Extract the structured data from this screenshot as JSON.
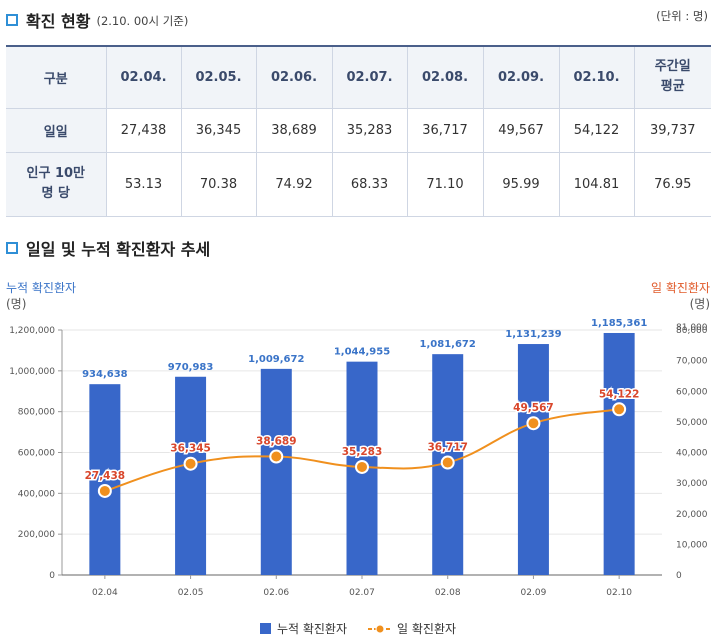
{
  "status": {
    "title": "확진 현황",
    "note": "(2.10. 00시 기준)",
    "unit": "(단위 : 명)",
    "headers": [
      "구분",
      "02.04.",
      "02.05.",
      "02.06.",
      "02.07.",
      "02.08.",
      "02.09.",
      "02.10.",
      "주간일\n평균"
    ],
    "rows": [
      {
        "label": "일일",
        "values": [
          "27,438",
          "36,345",
          "38,689",
          "35,283",
          "36,717",
          "49,567",
          "54,122",
          "39,737"
        ]
      },
      {
        "label": "인구 10만\n명 당",
        "values": [
          "53.13",
          "70.38",
          "74.92",
          "68.33",
          "71.10",
          "95.99",
          "104.81",
          "76.95"
        ]
      }
    ]
  },
  "trend": {
    "title": "일일 및 누적 확진환자 추세"
  },
  "chart_data": {
    "type": "bar+line",
    "categories": [
      "02.04",
      "02.05",
      "02.06",
      "02.07",
      "02.08",
      "02.09",
      "02.10"
    ],
    "series": [
      {
        "name": "누적 확진환자",
        "type": "bar",
        "axis": "left",
        "color": "#3867c9",
        "values": [
          934638,
          970983,
          1009672,
          1044955,
          1081672,
          1131239,
          1185361
        ],
        "labels": [
          "934,638",
          "970,983",
          "1,009,672",
          "1,044,955",
          "1,081,672",
          "1,131,239",
          "1,185,361"
        ]
      },
      {
        "name": "일 확진환자",
        "type": "line",
        "axis": "right",
        "color": "#f0901e",
        "values": [
          27438,
          36345,
          38689,
          35283,
          36717,
          49567,
          54122
        ],
        "labels": [
          "27,438",
          "36,345",
          "38,689",
          "35,283",
          "36,717",
          "49,567",
          "54,122"
        ]
      }
    ],
    "left_axis": {
      "label": "누적 확진환자",
      "unit": "(명)",
      "ylim": [
        0,
        1200000
      ],
      "ticks": [
        "0",
        "200,000",
        "400,000",
        "600,000",
        "800,000",
        "1,000,000",
        "1,200,000"
      ]
    },
    "right_axis": {
      "label": "일 확진환자",
      "unit": "(명)",
      "ylim": [
        0,
        80000
      ],
      "ticks": [
        "0",
        "10,000",
        "20,000",
        "30,000",
        "40,000",
        "50,000",
        "60,000",
        "70,000",
        "80,000",
        "81,000"
      ]
    },
    "legend": [
      "누적 확진환자",
      "일 확진환자"
    ],
    "legend_position": "bottom",
    "grid": true
  }
}
